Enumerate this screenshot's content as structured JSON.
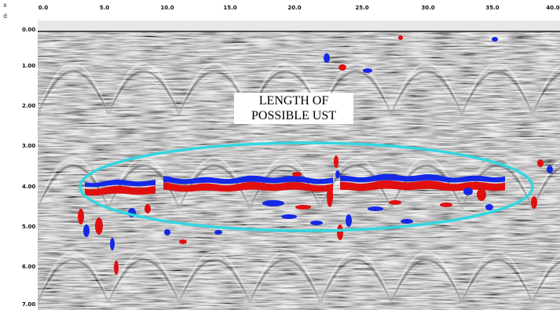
{
  "axes": {
    "x_label": "x",
    "y_label": "d",
    "x_ticks": [
      "0.0",
      "5.0",
      "10.0",
      "15.0",
      "20.0",
      "25.0",
      "30.0",
      "35.0",
      "40.0"
    ],
    "y_ticks": [
      "0.00",
      "1.00",
      "2.00",
      "3.00",
      "4.00",
      "5.00",
      "6.00",
      "7.00"
    ]
  },
  "annotation": {
    "line1": "LENGTH OF",
    "line2": "POSSIBLE UST"
  },
  "colors": {
    "highlight_ellipse": "#33d6e0",
    "positive_reflection": "#e01010",
    "negative_reflection": "#1428e6",
    "background_trace": "#8a8a8a"
  }
}
